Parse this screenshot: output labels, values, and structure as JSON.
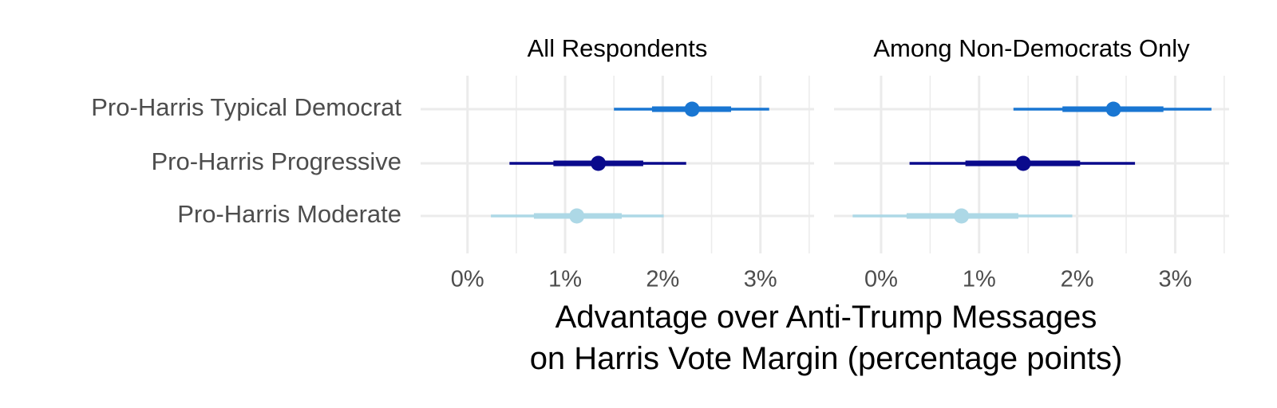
{
  "chart_data": [
    {
      "type": "dot-interval",
      "title": "All Respondents",
      "categories": [
        "Pro-Harris Typical Democrat",
        "Pro-Harris Progressive",
        "Pro-Harris Moderate"
      ],
      "colors": [
        "#1976d2",
        "#0a0a8c",
        "#add8e6"
      ],
      "estimates": [
        2.3,
        1.34,
        1.12
      ],
      "ci_inner": [
        [
          1.89,
          2.7
        ],
        [
          0.88,
          1.8
        ],
        [
          0.68,
          1.58
        ]
      ],
      "ci_outer": [
        [
          1.5,
          3.09
        ],
        [
          0.43,
          2.24
        ],
        [
          0.24,
          2.01
        ]
      ],
      "xlim": [
        -0.48,
        3.55
      ],
      "xticks": [
        {
          "value": 0,
          "label": "0%"
        },
        {
          "value": 1,
          "label": "1%"
        },
        {
          "value": 2,
          "label": "2%"
        },
        {
          "value": 3,
          "label": "3%"
        }
      ],
      "minor_xticks": [
        0.5,
        1.5,
        2.5,
        3.5
      ],
      "grid": true
    },
    {
      "type": "dot-interval",
      "title": "Among Non-Democrats Only",
      "colors": [
        "#1976d2",
        "#0a0a8c",
        "#add8e6"
      ],
      "estimates": [
        2.37,
        1.45,
        0.82
      ],
      "ci_inner": [
        [
          1.85,
          2.88
        ],
        [
          0.86,
          2.03
        ],
        [
          0.26,
          1.4
        ]
      ],
      "ci_outer": [
        [
          1.35,
          3.37
        ],
        [
          0.29,
          2.59
        ],
        [
          -0.29,
          1.95
        ]
      ],
      "xlim": [
        -0.48,
        3.55
      ],
      "xticks": [
        {
          "value": 0,
          "label": "0%"
        },
        {
          "value": 1,
          "label": "1%"
        },
        {
          "value": 2,
          "label": "2%"
        },
        {
          "value": 3,
          "label": "3%"
        }
      ],
      "minor_xticks": [
        0.5,
        1.5,
        2.5,
        3.5
      ],
      "grid": true
    }
  ],
  "xlabel": "Advantage over Anti-Trump Messages\non Harris Vote Margin (percentage points)"
}
